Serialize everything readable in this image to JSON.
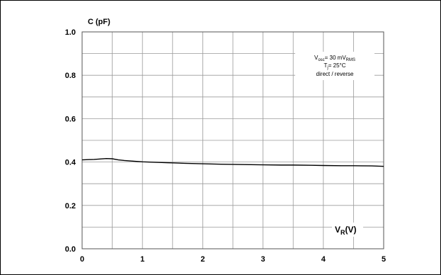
{
  "chart_data": {
    "type": "line",
    "title": "",
    "xlabel": "V_R(V)",
    "ylabel": "C (pF)",
    "xlim": [
      0,
      5
    ],
    "ylim": [
      0,
      1.0
    ],
    "grid": true,
    "x_ticks": [
      "0",
      "1",
      "2",
      "3",
      "4",
      "5"
    ],
    "y_ticks": [
      "0.0",
      "0.2",
      "0.4",
      "0.6",
      "0.8",
      "1.0"
    ],
    "ylabel_text": "C (pF)",
    "xlabel_main": "V",
    "xlabel_sub": "R",
    "xlabel_unit": "(V)",
    "annotation": {
      "line1_main": "V",
      "line1_sub": "osc",
      "line1_rest": "= 30 mV",
      "line1_sub2": "RMS",
      "line2_main": "T",
      "line2_sub": "j",
      "line2_rest": "= 25°C",
      "line3": "direct / reverse"
    },
    "series": [
      {
        "x": [
          0,
          0.1,
          0.2,
          0.3,
          0.4,
          0.5,
          0.6,
          0.7,
          0.8,
          0.9,
          1.0,
          1.2,
          1.4,
          1.5,
          1.7,
          2.0,
          2.3,
          2.5,
          2.8,
          3.0,
          3.3,
          3.5,
          3.8,
          4.0,
          4.3,
          4.5,
          4.8,
          5.0
        ],
        "y": [
          0.41,
          0.411,
          0.412,
          0.414,
          0.416,
          0.415,
          0.41,
          0.407,
          0.405,
          0.403,
          0.401,
          0.399,
          0.397,
          0.396,
          0.394,
          0.392,
          0.39,
          0.389,
          0.388,
          0.387,
          0.386,
          0.386,
          0.385,
          0.384,
          0.383,
          0.383,
          0.382,
          0.38
        ]
      }
    ],
    "line_color": "#000000",
    "grid_color": "#9a9a9a"
  }
}
